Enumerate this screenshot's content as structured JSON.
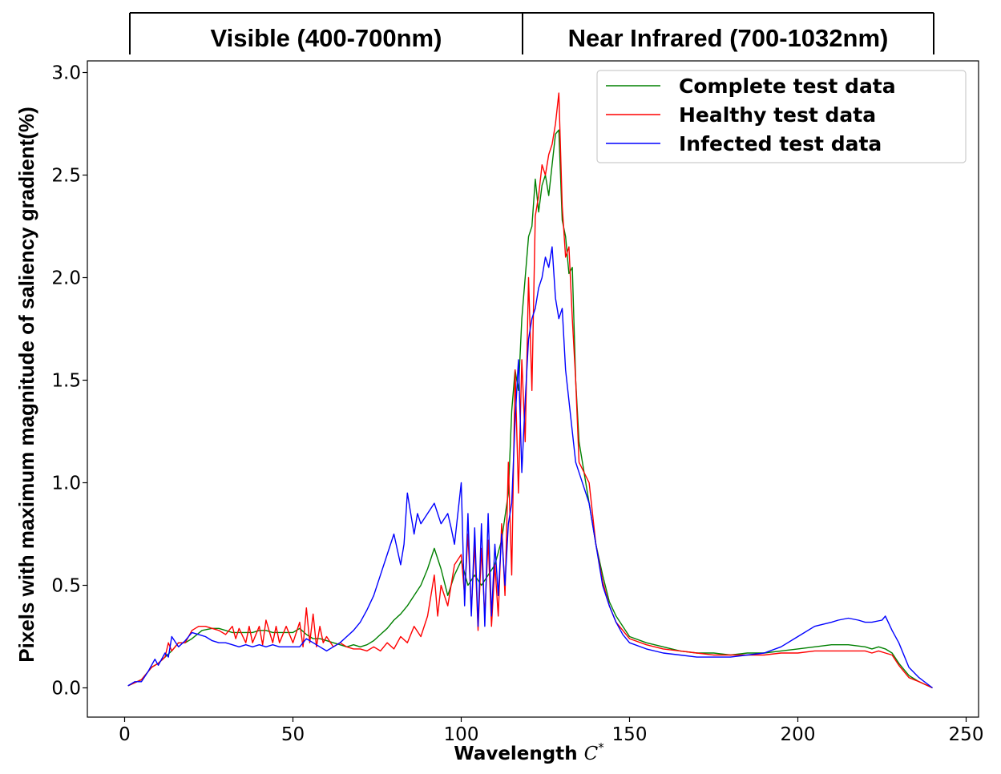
{
  "chart_data": {
    "type": "line",
    "title": "",
    "xlabel": "Wavelength C*",
    "ylabel": "Pixels with maximum magnitude of saliency gradient(%)",
    "xlim": [
      -10,
      250
    ],
    "ylim": [
      -0.15,
      3.05
    ],
    "xticks": [
      0,
      50,
      100,
      150,
      200,
      250
    ],
    "yticks": [
      0.0,
      0.5,
      1.0,
      1.5,
      2.0,
      2.5,
      3.0
    ],
    "xtick_labels": [
      "0",
      "50",
      "100",
      "150",
      "200",
      "250"
    ],
    "ytick_labels": [
      "0.0",
      "0.5",
      "1.0",
      "1.5",
      "2.0",
      "2.5",
      "3.0"
    ],
    "grid": false,
    "legend_position": "top-right",
    "bands": [
      {
        "label": "Visible (400-700nm)",
        "x_start": 2,
        "x_end": 117
      },
      {
        "label": "Near Infrared (700-1032nm)",
        "x_start": 117,
        "x_end": 240
      }
    ],
    "series": [
      {
        "name": "Complete test data",
        "color": "#008000",
        "x": [
          1,
          5,
          8,
          10,
          14,
          16,
          18,
          20,
          23,
          26,
          28,
          30,
          32,
          34,
          36,
          38,
          40,
          42,
          44,
          46,
          48,
          50,
          52,
          54,
          56,
          58,
          60,
          62,
          64,
          66,
          68,
          70,
          72,
          74,
          76,
          78,
          80,
          82,
          84,
          86,
          88,
          90,
          92,
          94,
          96,
          98,
          100,
          102,
          104,
          106,
          108,
          110,
          112,
          114,
          115,
          116,
          117,
          118,
          120,
          121,
          122,
          123,
          124,
          125,
          126,
          127,
          128,
          129,
          130,
          131,
          132,
          133,
          134,
          135,
          138,
          140,
          142,
          144,
          146,
          148,
          150,
          155,
          160,
          165,
          170,
          175,
          180,
          185,
          190,
          195,
          200,
          205,
          210,
          215,
          220,
          222,
          224,
          226,
          228,
          230,
          233,
          236,
          240
        ],
        "y": [
          0.01,
          0.04,
          0.1,
          0.12,
          0.18,
          0.22,
          0.22,
          0.24,
          0.28,
          0.29,
          0.29,
          0.28,
          0.27,
          0.27,
          0.27,
          0.27,
          0.28,
          0.28,
          0.27,
          0.27,
          0.27,
          0.27,
          0.29,
          0.26,
          0.24,
          0.24,
          0.23,
          0.22,
          0.21,
          0.2,
          0.21,
          0.2,
          0.21,
          0.23,
          0.26,
          0.29,
          0.33,
          0.36,
          0.4,
          0.45,
          0.5,
          0.58,
          0.68,
          0.58,
          0.45,
          0.55,
          0.62,
          0.5,
          0.55,
          0.5,
          0.55,
          0.6,
          0.72,
          0.95,
          1.35,
          1.55,
          1.45,
          1.8,
          2.2,
          2.25,
          2.48,
          2.32,
          2.45,
          2.5,
          2.4,
          2.55,
          2.7,
          2.72,
          2.28,
          2.2,
          2.02,
          2.05,
          1.5,
          1.2,
          0.9,
          0.7,
          0.55,
          0.42,
          0.35,
          0.3,
          0.25,
          0.22,
          0.2,
          0.18,
          0.17,
          0.17,
          0.16,
          0.17,
          0.17,
          0.18,
          0.19,
          0.2,
          0.21,
          0.21,
          0.2,
          0.19,
          0.2,
          0.19,
          0.17,
          0.12,
          0.06,
          0.03,
          0.0
        ]
      },
      {
        "name": "Healthy test data",
        "color": "#ff0000",
        "x": [
          1,
          5,
          8,
          10,
          12,
          13,
          14,
          16,
          18,
          20,
          22,
          24,
          26,
          28,
          30,
          32,
          33,
          34,
          36,
          37,
          38,
          40,
          41,
          42,
          44,
          45,
          46,
          48,
          50,
          52,
          53,
          54,
          55,
          56,
          57,
          58,
          59,
          60,
          62,
          64,
          66,
          68,
          70,
          72,
          74,
          76,
          78,
          80,
          82,
          84,
          86,
          88,
          90,
          92,
          93,
          94,
          96,
          98,
          100,
          101,
          102,
          103,
          104,
          105,
          106,
          107,
          108,
          109,
          110,
          111,
          112,
          113,
          114,
          115,
          116,
          117,
          118,
          119,
          120,
          121,
          122,
          123,
          124,
          125,
          126,
          127,
          128,
          129,
          130,
          131,
          132,
          133,
          134,
          135,
          138,
          140,
          142,
          144,
          146,
          148,
          150,
          155,
          160,
          165,
          170,
          175,
          180,
          185,
          190,
          195,
          200,
          205,
          210,
          215,
          220,
          222,
          224,
          226,
          228,
          230,
          233,
          236,
          240
        ],
        "y": [
          0.01,
          0.04,
          0.1,
          0.12,
          0.15,
          0.22,
          0.18,
          0.22,
          0.22,
          0.28,
          0.3,
          0.3,
          0.29,
          0.28,
          0.26,
          0.3,
          0.24,
          0.29,
          0.22,
          0.3,
          0.22,
          0.3,
          0.21,
          0.33,
          0.22,
          0.3,
          0.22,
          0.3,
          0.22,
          0.32,
          0.2,
          0.39,
          0.22,
          0.36,
          0.2,
          0.3,
          0.22,
          0.25,
          0.2,
          0.22,
          0.2,
          0.19,
          0.19,
          0.18,
          0.2,
          0.18,
          0.22,
          0.19,
          0.25,
          0.22,
          0.3,
          0.25,
          0.35,
          0.55,
          0.35,
          0.5,
          0.4,
          0.6,
          0.65,
          0.45,
          0.75,
          0.38,
          0.7,
          0.28,
          0.68,
          0.35,
          0.72,
          0.3,
          0.6,
          0.35,
          0.8,
          0.45,
          1.1,
          0.55,
          1.55,
          0.95,
          1.6,
          1.2,
          2.0,
          1.45,
          2.3,
          2.4,
          2.55,
          2.5,
          2.6,
          2.65,
          2.75,
          2.9,
          2.35,
          2.1,
          2.15,
          1.8,
          1.5,
          1.1,
          1.0,
          0.7,
          0.52,
          0.4,
          0.32,
          0.28,
          0.24,
          0.21,
          0.19,
          0.18,
          0.17,
          0.16,
          0.16,
          0.16,
          0.16,
          0.17,
          0.17,
          0.18,
          0.18,
          0.18,
          0.18,
          0.17,
          0.18,
          0.17,
          0.16,
          0.11,
          0.05,
          0.03,
          0.0
        ]
      },
      {
        "name": "Infected test data",
        "color": "#0000ff",
        "x": [
          1,
          3,
          5,
          7,
          9,
          10,
          12,
          13,
          14,
          16,
          18,
          20,
          22,
          24,
          26,
          28,
          30,
          32,
          34,
          36,
          38,
          40,
          42,
          44,
          46,
          48,
          50,
          52,
          54,
          56,
          58,
          60,
          62,
          64,
          66,
          68,
          70,
          72,
          74,
          76,
          78,
          80,
          82,
          83,
          84,
          86,
          87,
          88,
          90,
          92,
          94,
          96,
          97,
          98,
          100,
          101,
          102,
          103,
          104,
          105,
          106,
          107,
          108,
          109,
          110,
          111,
          112,
          113,
          114,
          115,
          116,
          117,
          118,
          119,
          120,
          121,
          122,
          123,
          124,
          125,
          126,
          127,
          128,
          129,
          130,
          131,
          132,
          133,
          134,
          135,
          138,
          140,
          142,
          144,
          146,
          148,
          150,
          155,
          160,
          165,
          170,
          175,
          180,
          185,
          190,
          195,
          200,
          205,
          210,
          212,
          215,
          218,
          220,
          222,
          225,
          226,
          228,
          230,
          233,
          236,
          240
        ],
        "y": [
          0.01,
          0.03,
          0.03,
          0.08,
          0.14,
          0.11,
          0.17,
          0.15,
          0.25,
          0.2,
          0.23,
          0.27,
          0.26,
          0.25,
          0.23,
          0.22,
          0.22,
          0.21,
          0.2,
          0.21,
          0.2,
          0.21,
          0.2,
          0.21,
          0.2,
          0.2,
          0.2,
          0.2,
          0.24,
          0.22,
          0.2,
          0.18,
          0.2,
          0.22,
          0.25,
          0.28,
          0.32,
          0.38,
          0.45,
          0.55,
          0.65,
          0.75,
          0.6,
          0.7,
          0.95,
          0.75,
          0.85,
          0.8,
          0.85,
          0.9,
          0.8,
          0.85,
          0.78,
          0.7,
          1.0,
          0.4,
          0.85,
          0.35,
          0.78,
          0.3,
          0.8,
          0.3,
          0.85,
          0.35,
          0.7,
          0.45,
          0.75,
          0.5,
          0.8,
          0.9,
          1.3,
          1.6,
          1.05,
          1.4,
          1.7,
          1.8,
          1.85,
          1.95,
          2.0,
          2.1,
          2.05,
          2.15,
          1.9,
          1.8,
          1.85,
          1.55,
          1.4,
          1.25,
          1.1,
          1.05,
          0.9,
          0.7,
          0.5,
          0.4,
          0.32,
          0.26,
          0.22,
          0.19,
          0.17,
          0.16,
          0.15,
          0.15,
          0.15,
          0.16,
          0.17,
          0.2,
          0.25,
          0.3,
          0.32,
          0.33,
          0.34,
          0.33,
          0.32,
          0.32,
          0.33,
          0.35,
          0.28,
          0.22,
          0.1,
          0.05,
          0.0
        ]
      }
    ]
  }
}
